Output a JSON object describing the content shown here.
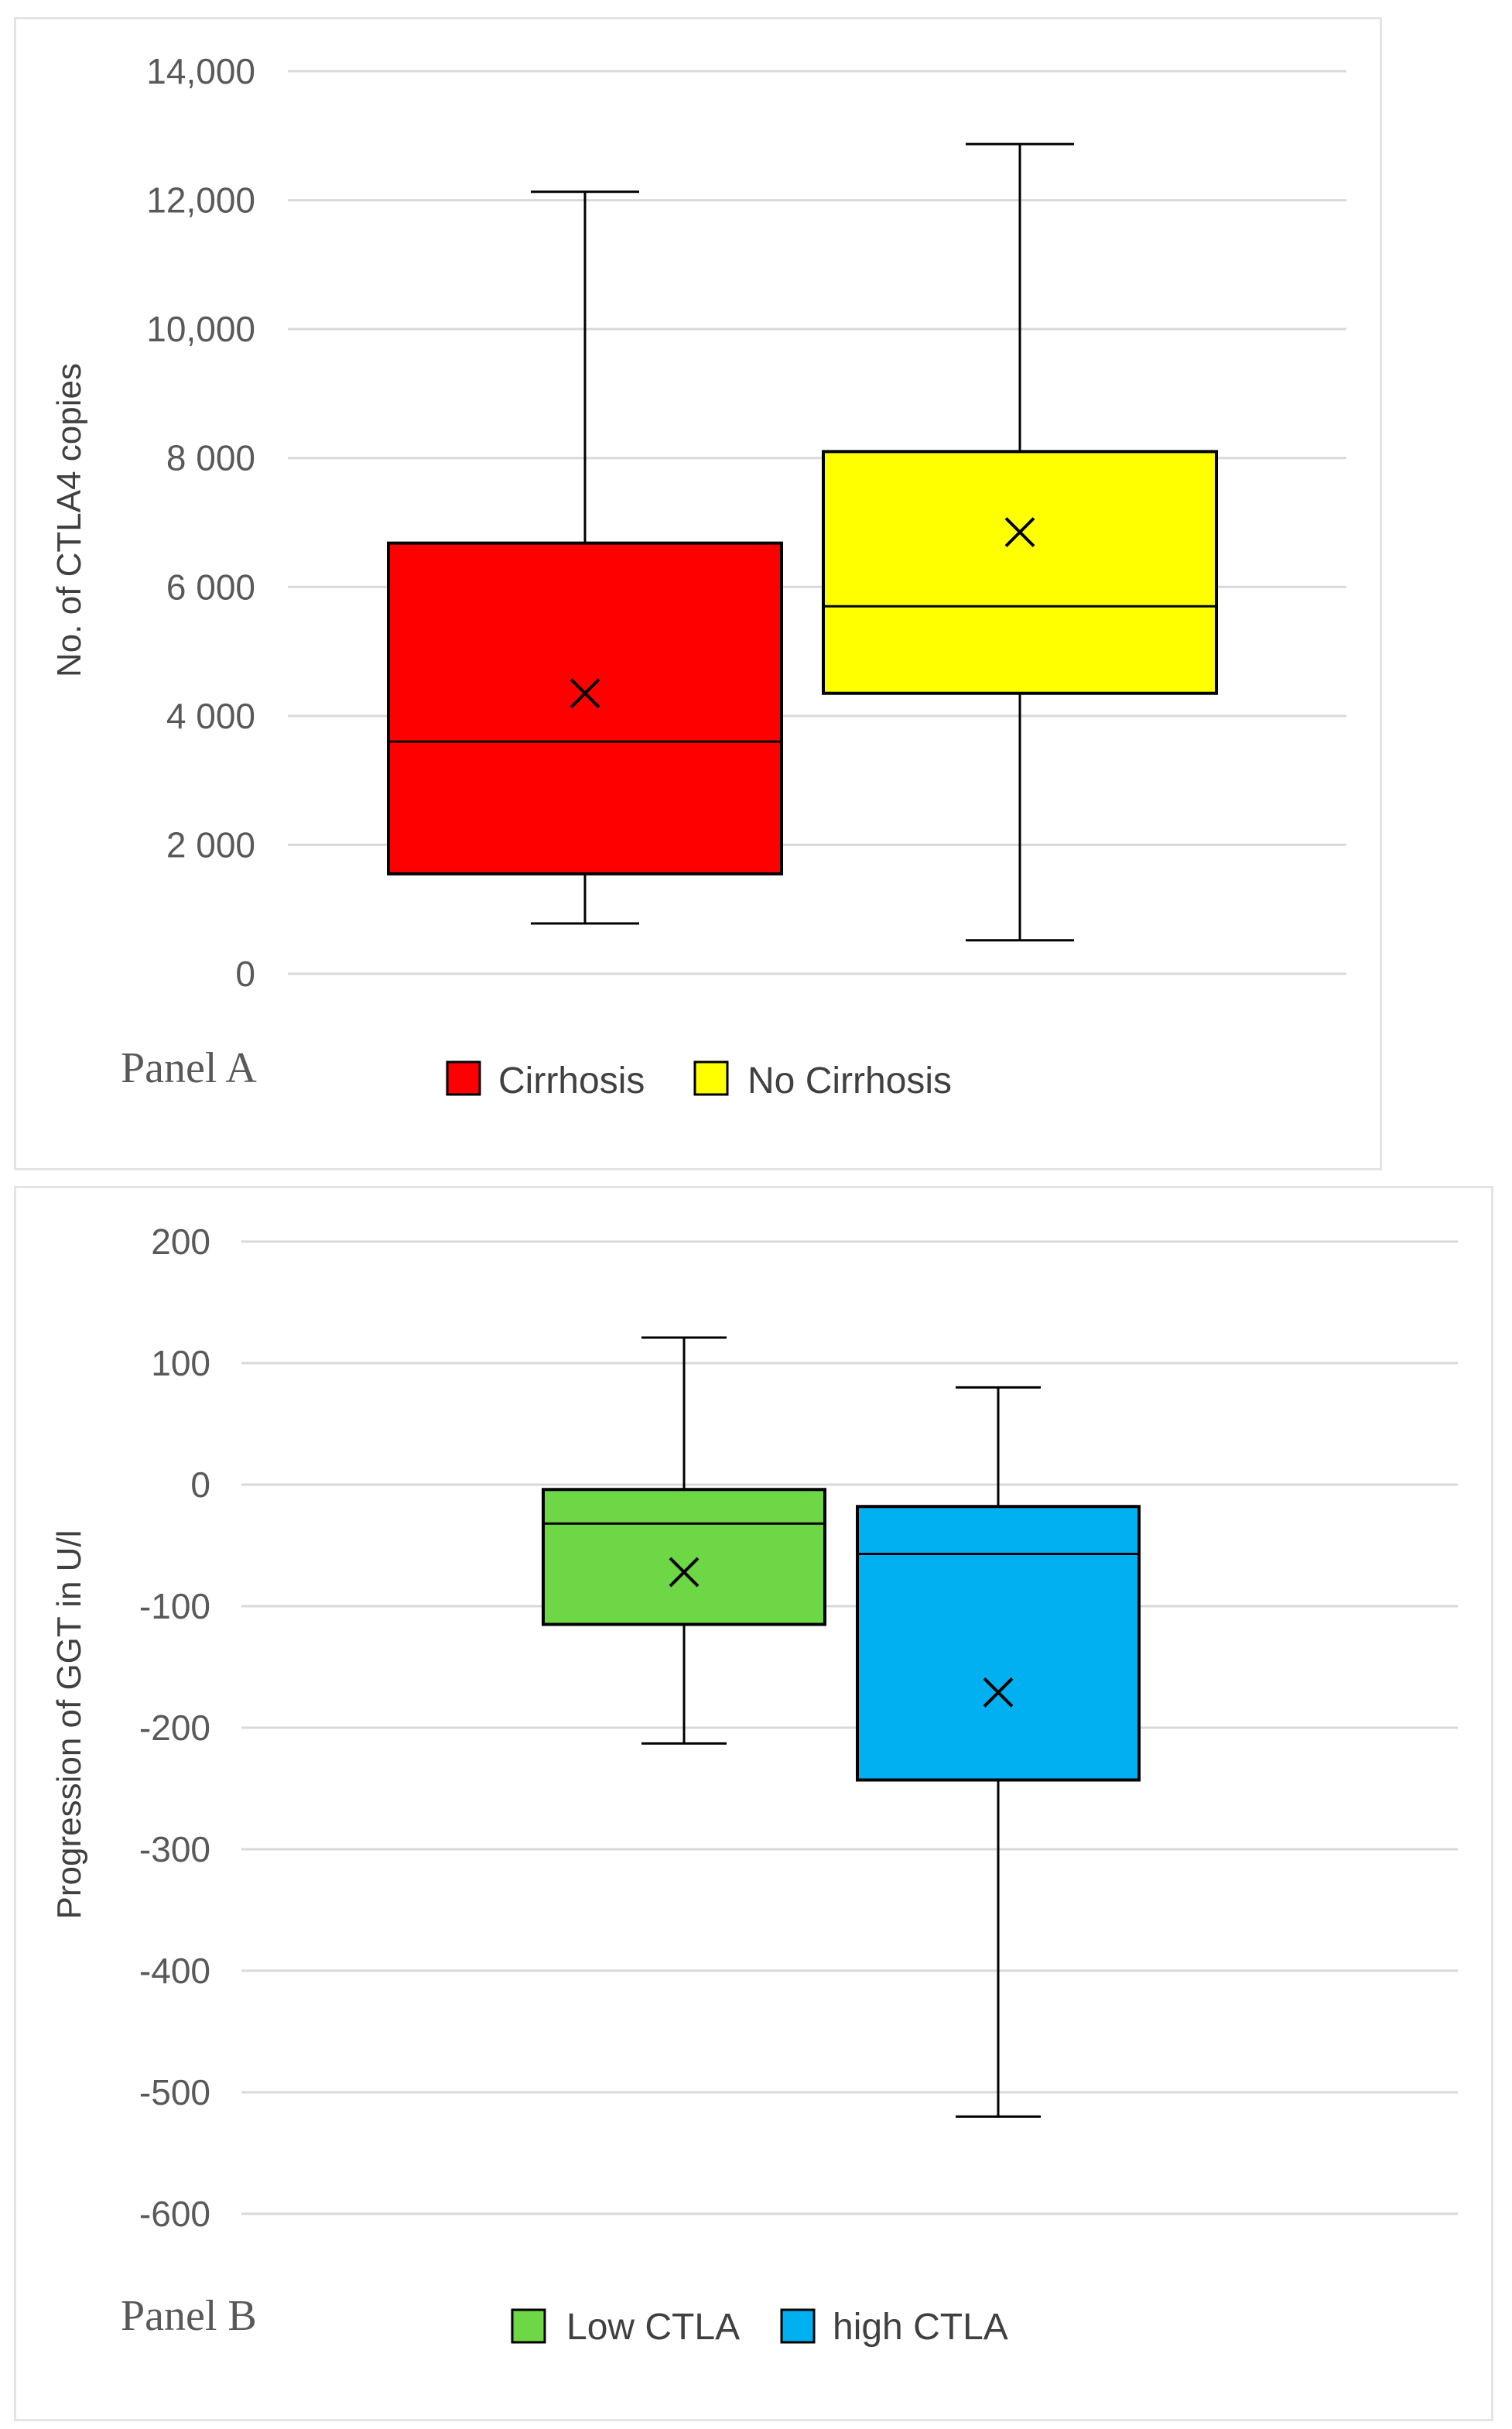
{
  "chart_data": [
    {
      "type": "box",
      "panel_label": "Panel A",
      "ylabel": "No. of CTLA4 copies",
      "ylim": [
        0,
        14000
      ],
      "y_ticks": [
        {
          "value": 0,
          "label": "0"
        },
        {
          "value": 2000,
          "label": "2 000"
        },
        {
          "value": 4000,
          "label": "4 000"
        },
        {
          "value": 6000,
          "label": "6 000"
        },
        {
          "value": 8000,
          "label": "8 000"
        },
        {
          "value": 10000,
          "label": "10,000"
        },
        {
          "value": 12000,
          "label": "12,000"
        },
        {
          "value": 14000,
          "label": "14,000"
        }
      ],
      "grid": true,
      "legend_position": "bottom",
      "series": [
        {
          "name": "Cirrhosis",
          "color": "#ff0000",
          "min": 780,
          "q1": 1550,
          "median": 3600,
          "q3": 6680,
          "max": 12130,
          "mean": 4350
        },
        {
          "name": "No Cirrhosis",
          "color": "#ffff00",
          "min": 520,
          "q1": 4350,
          "median": 5700,
          "q3": 8100,
          "max": 12870,
          "mean": 6850
        }
      ]
    },
    {
      "type": "box",
      "panel_label": "Panel B",
      "ylabel": "Progression of GGT in U/l",
      "ylim": [
        -600,
        200
      ],
      "y_ticks": [
        {
          "value": 200,
          "label": "200"
        },
        {
          "value": 100,
          "label": "100"
        },
        {
          "value": 0,
          "label": "0"
        },
        {
          "value": -100,
          "label": "-100"
        },
        {
          "value": -200,
          "label": "-200"
        },
        {
          "value": -300,
          "label": "-300"
        },
        {
          "value": -400,
          "label": "-400"
        },
        {
          "value": -500,
          "label": "-500"
        },
        {
          "value": -600,
          "label": "-600"
        }
      ],
      "grid": true,
      "legend_position": "bottom",
      "series": [
        {
          "name": "Low CTLA",
          "color": "#6dd746",
          "min": -213,
          "q1": -115,
          "median": -32,
          "q3": -4,
          "max": 121,
          "mean": -72
        },
        {
          "name": "high CTLA",
          "color": "#00b0f0",
          "min": -520,
          "q1": -243,
          "median": -57,
          "q3": -18,
          "max": 80,
          "mean": -171
        }
      ]
    }
  ]
}
